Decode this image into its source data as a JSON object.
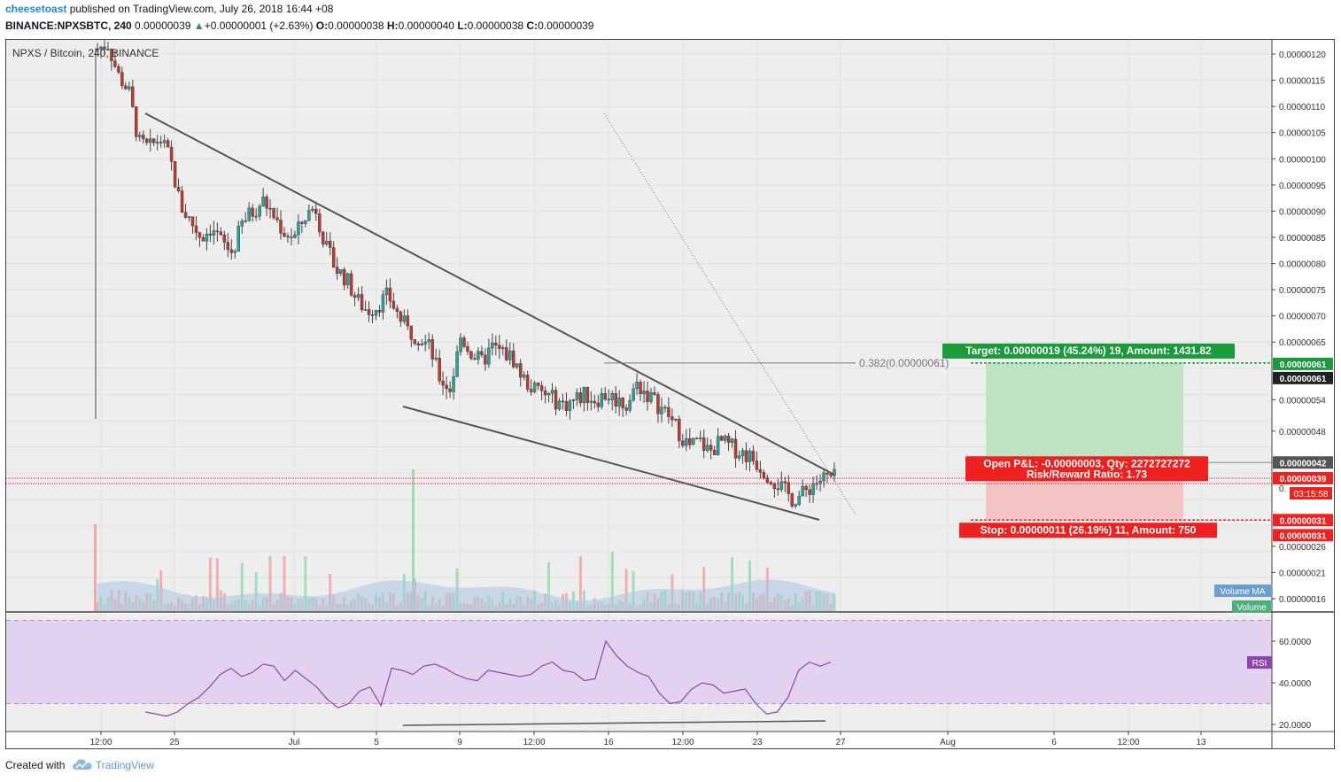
{
  "header": {
    "author": "cheesetoast",
    "published_text": " published on TradingView.com, July 26, 2018 16:44 +08",
    "symbol": "BINANCE:NPXSBTC, 240",
    "last": "0.00000039",
    "change": "+0.00000001 (+2.63%)",
    "o_label": "O:",
    "o": "0.00000038",
    "h_label": "H:",
    "h": "0.00000040",
    "l_label": "L:",
    "l": "0.00000038",
    "c_label": "C:",
    "c": "0.00000039"
  },
  "chart": {
    "legend": "NPXS / Bitcoin, 240, BINANCE",
    "fib_label": "0.382(0.00000061)",
    "target_label": "Target: 0.00000019 (45.24%) 19, Amount: 1431.82",
    "pnl_label": "Open P&L: -0.00000003, Qty: 2272727272",
    "rr_label": "Risk/Reward Ratio: 1.73",
    "stop_label": "Stop: 0.00000011 (26.19%) 11, Amount: 750",
    "volume_ma_label": "Volume MA",
    "volume_label": "Volume",
    "rsi_label": "RSI",
    "countdown": "03:15:58",
    "partial_tick": "0.",
    "price_badges": [
      {
        "text": "0.00000061",
        "color": "#1b9a3c"
      },
      {
        "text": "0.00000061",
        "color": "#222222"
      },
      {
        "text": "0.00000042",
        "color": "#555555"
      },
      {
        "text": "0.00000039",
        "color": "#ef2020"
      },
      {
        "text": "0.00000031",
        "color": "#ef2020"
      },
      {
        "text": "0.00000031",
        "color": "#ef2020"
      }
    ],
    "colors": {
      "up": "#26a69a",
      "down": "#c0392b",
      "rsi": "#8e44ad",
      "target": "#1b9a3c",
      "stop": "#ef2020"
    }
  },
  "chart_data": {
    "type": "candlestick",
    "title": "NPXS / Bitcoin, 240, BINANCE",
    "x_ticks": [
      "12:00",
      "25",
      "Jul",
      "5",
      "9",
      "12:00",
      "16",
      "12:00",
      "23",
      "27",
      "Aug",
      "6",
      "12:00",
      "13"
    ],
    "price_axis_ticks": [
      "0.00000120",
      "0.00000115",
      "0.00000110",
      "0.00000105",
      "0.00000100",
      "0.00000095",
      "0.00000090",
      "0.00000085",
      "0.00000080",
      "0.00000075",
      "0.00000070",
      "0.00000065",
      "0.00000054",
      "0.00000048",
      "0.00000026",
      "0.00000021",
      "0.00000016"
    ],
    "ylim": [
      1e-07,
      1.24e-06
    ],
    "rsi_axis_ticks": [
      "60.0000",
      "40.0000",
      "20.0000"
    ],
    "rsi_band": [
      30,
      70
    ],
    "close_path": [
      1.21e-06,
      1.22e-06,
      1.16e-06,
      1.13e-06,
      1.03e-06,
      1.02e-06,
      1.04e-06,
      1e-06,
      9.1e-07,
      8.8e-07,
      8.5e-07,
      8.7e-07,
      8.4e-07,
      8.2e-07,
      8.8e-07,
      9e-07,
      9.2e-07,
      8.9e-07,
      8.6e-07,
      8.5e-07,
      8.9e-07,
      9.1e-07,
      8.3e-07,
      7.9e-07,
      7.7e-07,
      7.3e-07,
      7.1e-07,
      7.2e-07,
      7.4e-07,
      7e-07,
      6.7e-07,
      6.6e-07,
      6.4e-07,
      5.8e-07,
      5.6e-07,
      6.6e-07,
      6.3e-07,
      6.1e-07,
      6.4e-07,
      6.3e-07,
      6.2e-07,
      5.8e-07,
      5.6e-07,
      5.5e-07,
      5.4e-07,
      5.3e-07,
      5.4e-07,
      5.5e-07,
      5.4e-07,
      5.5e-07,
      5.4e-07,
      5.3e-07,
      5.7e-07,
      5.5e-07,
      5.3e-07,
      5.1e-07,
      4.8e-07,
      4.5e-07,
      4.6e-07,
      4.4e-07,
      4.6e-07,
      4.5e-07,
      4.4e-07,
      4.3e-07,
      4.1e-07,
      3.9e-07,
      3.7e-07,
      3.5e-07,
      3.6e-07,
      3.8e-07,
      3.9e-07,
      3.9e-07
    ],
    "rsi_path": [
      26,
      25,
      24,
      26,
      30,
      33,
      38,
      44,
      47,
      43,
      45,
      49,
      48,
      41,
      46,
      42,
      38,
      32,
      28,
      30,
      36,
      38,
      29,
      47,
      46,
      44,
      48,
      49,
      47,
      44,
      42,
      41,
      46,
      45,
      44,
      43,
      44,
      48,
      50,
      46,
      45,
      41,
      42,
      60,
      53,
      48,
      45,
      43,
      35,
      30,
      31,
      37,
      40,
      39,
      35,
      36,
      37,
      30,
      25,
      26,
      33,
      46,
      50,
      48,
      50
    ],
    "trendlines": [
      {
        "name": "upper",
        "from": [
          1.08e-06
        ],
        "to": [
          4.2e-07
        ]
      },
      {
        "name": "lower",
        "from": [
          5.5e-07
        ],
        "to": [
          3.2e-07
        ]
      }
    ],
    "fib_level": 6.1e-07,
    "position": {
      "entry": 4.2e-07,
      "target": 6.1e-07,
      "stop": 3.1e-07,
      "last": 3.9e-07
    }
  },
  "footer": {
    "created_with": "Created with",
    "tv": "TradingView"
  }
}
